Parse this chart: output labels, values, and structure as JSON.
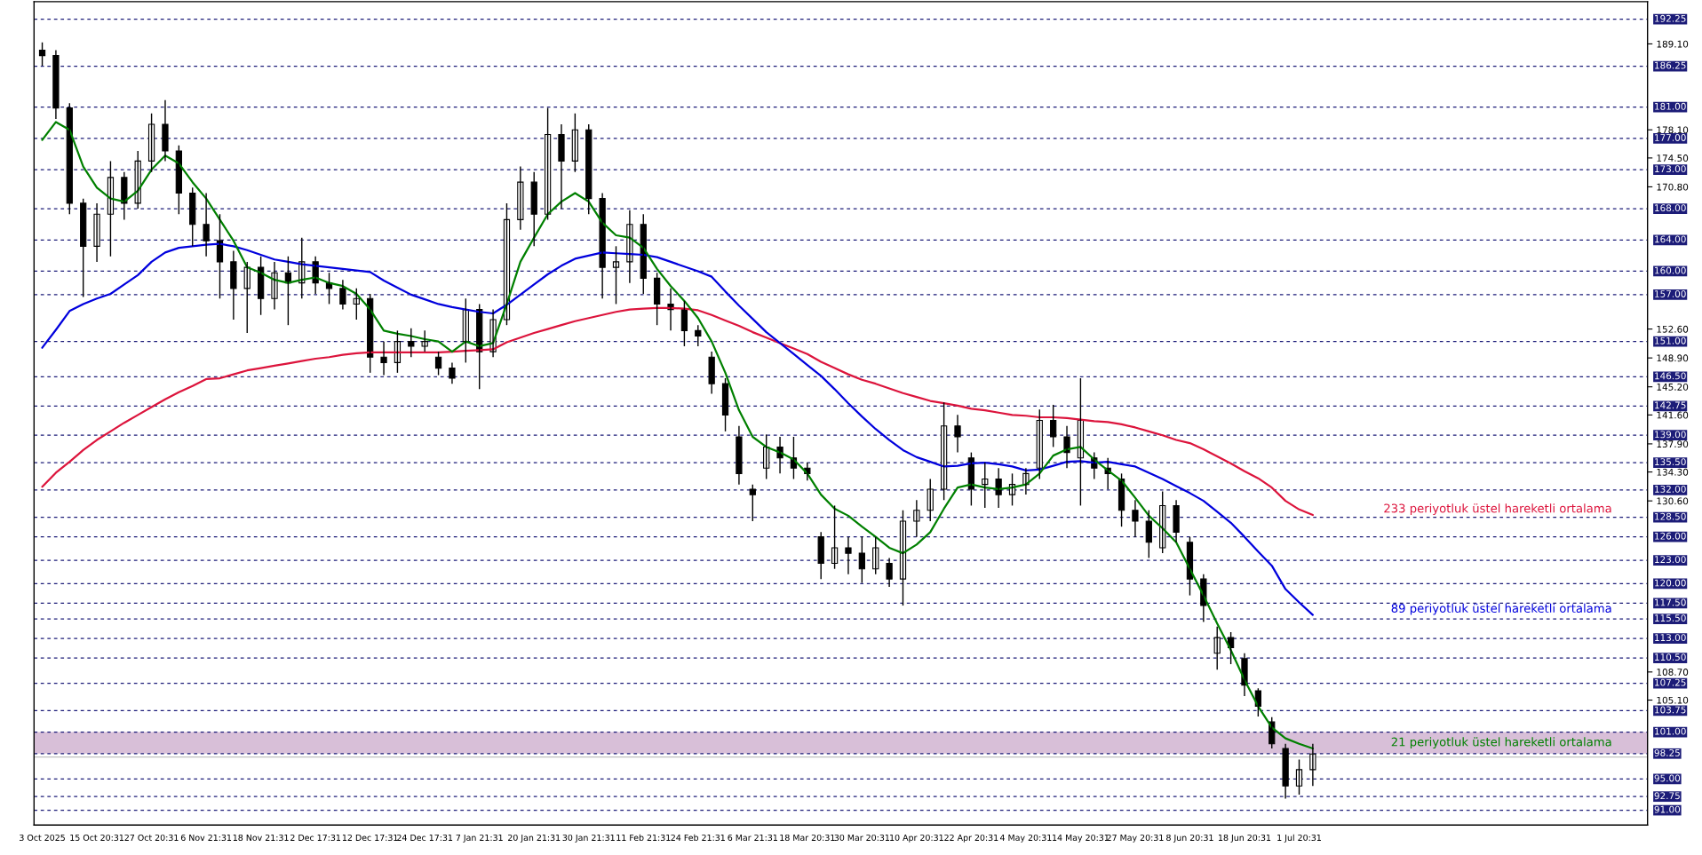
{
  "chart_data": {
    "type": "candlestick",
    "categories": [
      "3 Oct 2025",
      null,
      null,
      null,
      "15 Oct 20:31",
      null,
      null,
      null,
      "27 Oct 20:31",
      null,
      null,
      null,
      "6 Nov 21:31",
      null,
      null,
      null,
      "18 Nov 21:31",
      null,
      null,
      null,
      "2 Dec 17:31",
      null,
      null,
      null,
      "12 Dec 17:31",
      null,
      null,
      null,
      "24 Dec 17:31",
      null,
      null,
      null,
      "7 Jan 21:31",
      null,
      null,
      null,
      "20 Jan 21:31",
      null,
      null,
      null,
      "30 Jan 21:31",
      null,
      null,
      null,
      "11 Feb 21:31",
      null,
      null,
      null,
      "24 Feb 21:31",
      null,
      null,
      null,
      "6 Mar 21:31",
      null,
      null,
      null,
      "18 Mar 20:31",
      null,
      null,
      null,
      "30 Mar 20:31",
      null,
      null,
      null,
      "10 Apr 20:31",
      null,
      null,
      null,
      "22 Apr 20:31",
      null,
      null,
      null,
      "4 May 20:31",
      null,
      null,
      null,
      "14 May 20:31",
      null,
      null,
      null,
      "27 May 20:31",
      null,
      null,
      null,
      "8 Jun 20:31",
      null,
      null,
      null,
      "18 Jun 20:31",
      null,
      null,
      null,
      "1 Jul 20:31",
      null
    ],
    "ohlc": [
      [
        188.3,
        189.3,
        186.3,
        187.6
      ],
      [
        187.6,
        188.3,
        179.5,
        180.9
      ],
      [
        180.9,
        181.5,
        167.3,
        168.7
      ],
      [
        168.7,
        169.3,
        156.7,
        163.2
      ],
      [
        163.2,
        168.7,
        161.2,
        167.3
      ],
      [
        167.3,
        174.1,
        161.9,
        172.0
      ],
      [
        172.0,
        172.7,
        166.6,
        168.7
      ],
      [
        168.7,
        175.4,
        168.0,
        174.1
      ],
      [
        174.1,
        180.2,
        172.7,
        178.8
      ],
      [
        178.8,
        181.9,
        174.1,
        175.4
      ],
      [
        175.4,
        176.1,
        167.3,
        170.0
      ],
      [
        170.0,
        170.7,
        163.2,
        166.0
      ],
      [
        166.0,
        170.0,
        161.9,
        163.9
      ],
      [
        163.9,
        167.3,
        156.5,
        161.2
      ],
      [
        161.2,
        162.6,
        153.8,
        157.8
      ],
      [
        157.8,
        161.2,
        152.1,
        160.5
      ],
      [
        160.5,
        161.9,
        154.4,
        156.5
      ],
      [
        156.5,
        161.2,
        155.1,
        159.8
      ],
      [
        159.8,
        161.9,
        153.1,
        158.5
      ],
      [
        158.5,
        164.3,
        156.5,
        161.2
      ],
      [
        161.2,
        161.9,
        157.1,
        158.5
      ],
      [
        158.5,
        159.8,
        155.8,
        157.8
      ],
      [
        157.8,
        158.9,
        155.1,
        155.8
      ],
      [
        155.8,
        157.8,
        153.8,
        156.5
      ],
      [
        156.5,
        157.1,
        147.0,
        149.0
      ],
      [
        149.0,
        151.0,
        146.7,
        148.3
      ],
      [
        148.3,
        152.4,
        147.0,
        151.0
      ],
      [
        151.0,
        152.7,
        149.0,
        150.4
      ],
      [
        150.4,
        152.4,
        149.7,
        151.0
      ],
      [
        149.0,
        149.7,
        146.7,
        147.6
      ],
      [
        147.6,
        148.3,
        145.6,
        146.3
      ],
      [
        151.0,
        156.5,
        148.3,
        155.1
      ],
      [
        155.1,
        155.8,
        144.9,
        149.7
      ],
      [
        149.7,
        155.1,
        149.0,
        153.8
      ],
      [
        153.8,
        168.7,
        153.1,
        166.6
      ],
      [
        166.6,
        173.4,
        165.3,
        171.4
      ],
      [
        171.4,
        172.7,
        163.2,
        167.3
      ],
      [
        167.3,
        180.9,
        166.6,
        177.5
      ],
      [
        177.5,
        178.8,
        168.0,
        174.1
      ],
      [
        174.1,
        180.2,
        172.7,
        178.1
      ],
      [
        178.1,
        178.8,
        167.3,
        169.3
      ],
      [
        169.3,
        170.0,
        156.5,
        160.5
      ],
      [
        160.5,
        163.2,
        155.8,
        161.2
      ],
      [
        161.2,
        167.8,
        158.5,
        166.0
      ],
      [
        166.0,
        167.3,
        157.1,
        159.1
      ],
      [
        159.1,
        159.8,
        153.1,
        155.8
      ],
      [
        155.8,
        157.8,
        152.4,
        155.1
      ],
      [
        155.1,
        156.2,
        150.4,
        152.4
      ],
      [
        152.4,
        153.1,
        150.4,
        151.7
      ],
      [
        149.0,
        149.7,
        144.3,
        145.6
      ],
      [
        145.6,
        146.3,
        139.5,
        141.6
      ],
      [
        138.8,
        140.2,
        132.7,
        134.1
      ],
      [
        132.1,
        132.7,
        128.0,
        131.4
      ],
      [
        134.8,
        139.1,
        133.4,
        137.5
      ],
      [
        137.5,
        138.8,
        134.1,
        136.1
      ],
      [
        136.1,
        138.8,
        133.4,
        134.8
      ],
      [
        134.8,
        135.5,
        133.2,
        134.1
      ],
      [
        126.0,
        126.6,
        120.6,
        122.6
      ],
      [
        122.6,
        130.0,
        121.9,
        124.6
      ],
      [
        124.6,
        126.0,
        121.2,
        123.9
      ],
      [
        123.9,
        126.0,
        120.1,
        121.9
      ],
      [
        121.9,
        126.0,
        121.2,
        124.6
      ],
      [
        122.6,
        123.3,
        119.6,
        120.6
      ],
      [
        120.6,
        129.4,
        117.2,
        128.0
      ],
      [
        128.0,
        130.7,
        126.0,
        129.4
      ],
      [
        129.4,
        133.4,
        128.0,
        132.1
      ],
      [
        132.1,
        143.2,
        130.7,
        140.2
      ],
      [
        140.2,
        141.6,
        136.8,
        138.8
      ],
      [
        136.1,
        136.8,
        130.0,
        132.1
      ],
      [
        132.7,
        135.5,
        129.7,
        133.4
      ],
      [
        133.4,
        134.8,
        129.7,
        131.4
      ],
      [
        131.4,
        134.1,
        130.0,
        132.7
      ],
      [
        132.7,
        134.8,
        131.4,
        134.1
      ],
      [
        134.8,
        142.3,
        133.4,
        140.9
      ],
      [
        140.9,
        142.9,
        137.5,
        138.8
      ],
      [
        138.8,
        140.2,
        134.8,
        136.8
      ],
      [
        136.1,
        146.3,
        130.0,
        140.9
      ],
      [
        136.1,
        136.8,
        133.4,
        134.8
      ],
      [
        134.8,
        136.1,
        132.1,
        134.1
      ],
      [
        133.4,
        134.1,
        127.3,
        129.4
      ],
      [
        129.4,
        130.7,
        126.0,
        128.0
      ],
      [
        128.0,
        129.4,
        123.3,
        125.3
      ],
      [
        124.6,
        131.8,
        123.9,
        130.0
      ],
      [
        130.0,
        130.7,
        125.3,
        126.6
      ],
      [
        125.3,
        126.0,
        118.5,
        120.6
      ],
      [
        120.6,
        121.2,
        115.1,
        117.2
      ],
      [
        111.1,
        114.5,
        109.0,
        113.1
      ],
      [
        113.1,
        113.8,
        109.7,
        111.8
      ],
      [
        110.4,
        111.1,
        105.6,
        107.0
      ],
      [
        106.3,
        106.6,
        103.0,
        104.3
      ],
      [
        102.3,
        102.9,
        98.9,
        99.5
      ],
      [
        98.9,
        99.5,
        92.5,
        94.1
      ],
      [
        94.1,
        97.5,
        93.0,
        96.2
      ],
      [
        96.2,
        99.5,
        94.1,
        98.2
      ]
    ],
    "series": [
      {
        "type": "line",
        "name": "233 periyotluk üstel hareketli ortalama",
        "color": "#dc143c",
        "values": [
          132.4,
          134.2,
          135.6,
          137.1,
          138.4,
          139.5,
          140.6,
          141.6,
          142.6,
          143.6,
          144.5,
          145.3,
          146.2,
          146.3,
          146.8,
          147.3,
          147.6,
          147.9,
          148.2,
          148.5,
          148.8,
          149.0,
          149.3,
          149.5,
          149.6,
          149.6,
          149.6,
          149.6,
          149.6,
          149.6,
          149.7,
          149.8,
          149.9,
          150.0,
          150.9,
          151.5,
          152.1,
          152.6,
          153.1,
          153.6,
          154.0,
          154.4,
          154.8,
          155.1,
          155.2,
          155.3,
          155.3,
          155.2,
          155.0,
          154.4,
          153.7,
          153.0,
          152.2,
          151.5,
          150.8,
          150.1,
          149.4,
          148.4,
          147.6,
          146.8,
          146.1,
          145.6,
          145.0,
          144.4,
          143.9,
          143.4,
          143.1,
          142.8,
          142.4,
          142.2,
          141.9,
          141.6,
          141.5,
          141.3,
          141.3,
          141.2,
          141.0,
          140.8,
          140.7,
          140.4,
          140.0,
          139.5,
          139.0,
          138.4,
          138.0,
          137.2,
          136.3,
          135.4,
          134.4,
          133.5,
          132.3,
          130.6,
          129.5,
          128.8
        ]
      },
      {
        "type": "line",
        "name": "89 periyotluk üstel hareketli ortalama",
        "color": "#0000dd",
        "values": [
          150.2,
          152.5,
          154.9,
          155.8,
          156.5,
          157.1,
          158.3,
          159.5,
          161.2,
          162.4,
          163.0,
          163.2,
          163.4,
          163.5,
          163.2,
          162.7,
          162.1,
          161.5,
          161.2,
          160.9,
          160.7,
          160.5,
          160.3,
          160.1,
          159.9,
          158.8,
          157.9,
          157.0,
          156.4,
          155.8,
          155.4,
          155.1,
          154.8,
          154.6,
          155.7,
          157.0,
          158.3,
          159.6,
          160.7,
          161.6,
          162.0,
          162.4,
          162.3,
          162.2,
          162.1,
          161.8,
          161.2,
          160.6,
          160.0,
          159.3,
          157.4,
          155.6,
          153.9,
          152.2,
          150.8,
          149.4,
          148.0,
          146.6,
          144.9,
          143.1,
          141.4,
          139.8,
          138.4,
          137.1,
          136.2,
          135.6,
          135.0,
          135.1,
          135.4,
          135.5,
          135.3,
          135.0,
          134.5,
          134.6,
          135.1,
          135.6,
          135.7,
          135.5,
          135.6,
          135.3,
          135.0,
          134.2,
          133.4,
          132.5,
          131.6,
          130.6,
          129.2,
          127.8,
          126.0,
          124.1,
          122.3,
          119.3,
          117.6,
          116.0
        ]
      },
      {
        "type": "line",
        "name": "21 periyotluk üstel hareketli ortalama",
        "color": "#008000",
        "values": [
          176.8,
          179.1,
          178.1,
          173.4,
          170.7,
          169.3,
          168.9,
          170.3,
          173.0,
          174.8,
          173.8,
          171.4,
          169.3,
          166.6,
          163.9,
          160.5,
          159.8,
          158.9,
          158.5,
          158.9,
          159.2,
          158.5,
          158.1,
          157.1,
          155.1,
          152.4,
          152.0,
          151.7,
          151.3,
          151.0,
          149.7,
          151.0,
          150.4,
          150.8,
          155.8,
          161.2,
          164.3,
          167.3,
          168.9,
          170.0,
          168.9,
          166.2,
          164.6,
          164.3,
          163.0,
          160.3,
          158.1,
          156.2,
          154.0,
          151.0,
          147.0,
          142.2,
          138.8,
          137.5,
          136.8,
          135.9,
          134.1,
          131.4,
          129.6,
          128.7,
          127.3,
          126.0,
          124.6,
          123.9,
          125.0,
          126.6,
          129.6,
          132.3,
          132.7,
          132.3,
          132.1,
          132.3,
          132.7,
          134.1,
          136.4,
          137.2,
          137.5,
          135.9,
          134.5,
          133.2,
          131.0,
          128.7,
          127.1,
          125.3,
          121.9,
          118.5,
          114.9,
          111.5,
          107.7,
          104.3,
          101.6,
          100.2,
          99.5,
          98.9
        ]
      }
    ],
    "ylim": [
      89.1,
      194.5
    ],
    "yticks": [
      {
        "value": 189.1,
        "label": "189.10"
      },
      {
        "value": 178.1,
        "label": "178.10"
      },
      {
        "value": 174.5,
        "label": "174.50"
      },
      {
        "value": 170.8,
        "label": "170.80"
      },
      {
        "value": 152.6,
        "label": "152.60"
      },
      {
        "value": 148.9,
        "label": "148.90"
      },
      {
        "value": 145.2,
        "label": "145.20"
      },
      {
        "value": 141.6,
        "label": "141.60"
      },
      {
        "value": 137.9,
        "label": "137.90"
      },
      {
        "value": 134.3,
        "label": "134.30"
      },
      {
        "value": 130.6,
        "label": "130.60"
      },
      {
        "value": 108.7,
        "label": "108.70"
      },
      {
        "value": 105.1,
        "label": "105.10"
      }
    ],
    "ref_lines": [
      {
        "axis": "y",
        "value": 192.25,
        "label": "192.25",
        "color": "#1c1c78",
        "line_style": "dashed"
      },
      {
        "axis": "y",
        "value": 186.25,
        "label": "186.25",
        "color": "#1c1c78",
        "line_style": "dashed"
      },
      {
        "axis": "y",
        "value": 181,
        "label": "181.00",
        "color": "#1c1c78",
        "line_style": "dashed"
      },
      {
        "axis": "y",
        "value": 177,
        "label": "177.00",
        "color": "#1c1c78",
        "line_style": "dashed"
      },
      {
        "axis": "y",
        "value": 173,
        "label": "173.00",
        "color": "#1c1c78",
        "line_style": "dashed"
      },
      {
        "axis": "y",
        "value": 168,
        "label": "168.00",
        "color": "#1c1c78",
        "line_style": "dashed"
      },
      {
        "axis": "y",
        "value": 164,
        "label": "164.00",
        "color": "#1c1c78",
        "line_style": "dashed"
      },
      {
        "axis": "y",
        "value": 160,
        "label": "160.00",
        "color": "#1c1c78",
        "line_style": "dashed"
      },
      {
        "axis": "y",
        "value": 157,
        "label": "157.00",
        "color": "#1c1c78",
        "line_style": "dashed"
      },
      {
        "axis": "y",
        "value": 151,
        "label": "151.00",
        "color": "#1c1c78",
        "line_style": "dashed"
      },
      {
        "axis": "y",
        "value": 146.5,
        "label": "146.50",
        "color": "#1c1c78",
        "line_style": "dashed"
      },
      {
        "axis": "y",
        "value": 142.75,
        "label": "142.75",
        "color": "#1c1c78",
        "line_style": "dashed"
      },
      {
        "axis": "y",
        "value": 139,
        "label": "139.00",
        "color": "#1c1c78",
        "line_style": "dashed"
      },
      {
        "axis": "y",
        "value": 135.5,
        "label": "135.50",
        "color": "#1c1c78",
        "line_style": "dashed"
      },
      {
        "axis": "y",
        "value": 132,
        "label": "132.00",
        "color": "#1c1c78",
        "line_style": "dashed"
      },
      {
        "axis": "y",
        "value": 128.5,
        "label": "128.50",
        "color": "#1c1c78",
        "line_style": "dashed"
      },
      {
        "axis": "y",
        "value": 126,
        "label": "126.00",
        "color": "#1c1c78",
        "line_style": "dashed"
      },
      {
        "axis": "y",
        "value": 123,
        "label": "123.00",
        "color": "#1c1c78",
        "line_style": "dashed"
      },
      {
        "axis": "y",
        "value": 120,
        "label": "120.00",
        "color": "#1c1c78",
        "line_style": "dashed"
      },
      {
        "axis": "y",
        "value": 117.5,
        "label": "117.50",
        "color": "#1c1c78",
        "line_style": "dashed"
      },
      {
        "axis": "y",
        "value": 115.5,
        "label": "115.50",
        "color": "#1c1c78",
        "line_style": "dashed"
      },
      {
        "axis": "y",
        "value": 113,
        "label": "113.00",
        "color": "#1c1c78",
        "line_style": "dashed"
      },
      {
        "axis": "y",
        "value": 110.5,
        "label": "110.50",
        "color": "#1c1c78",
        "line_style": "dashed"
      },
      {
        "axis": "y",
        "value": 107.25,
        "label": "107.25",
        "color": "#1c1c78",
        "line_style": "dashed"
      },
      {
        "axis": "y",
        "value": 103.75,
        "label": "103.75",
        "color": "#1c1c78",
        "line_style": "dashed"
      },
      {
        "axis": "y",
        "value": 101,
        "label": "101.00",
        "color": "#1c1c78",
        "line_style": "dashed"
      },
      {
        "axis": "y",
        "value": 98.25,
        "label": "98.25",
        "color": "#1c1c78",
        "line_style": "dashed"
      },
      {
        "axis": "y",
        "value": 97.8,
        "color": "#c0c0c0",
        "line_style": "solid"
      },
      {
        "axis": "y",
        "value": 95,
        "label": "95.00",
        "color": "#1c1c78",
        "line_style": "dashed"
      },
      {
        "axis": "y",
        "value": 92.75,
        "label": "92.75",
        "color": "#1c1c78",
        "line_style": "dashed"
      },
      {
        "axis": "y",
        "value": 91,
        "label": "91.00",
        "color": "#1c1c78",
        "line_style": "dashed"
      }
    ],
    "bands": [
      {
        "axis": "y",
        "from": 98.25,
        "to": 101,
        "color": "#d8bfd8"
      }
    ],
    "grid": false,
    "legend": false
  }
}
